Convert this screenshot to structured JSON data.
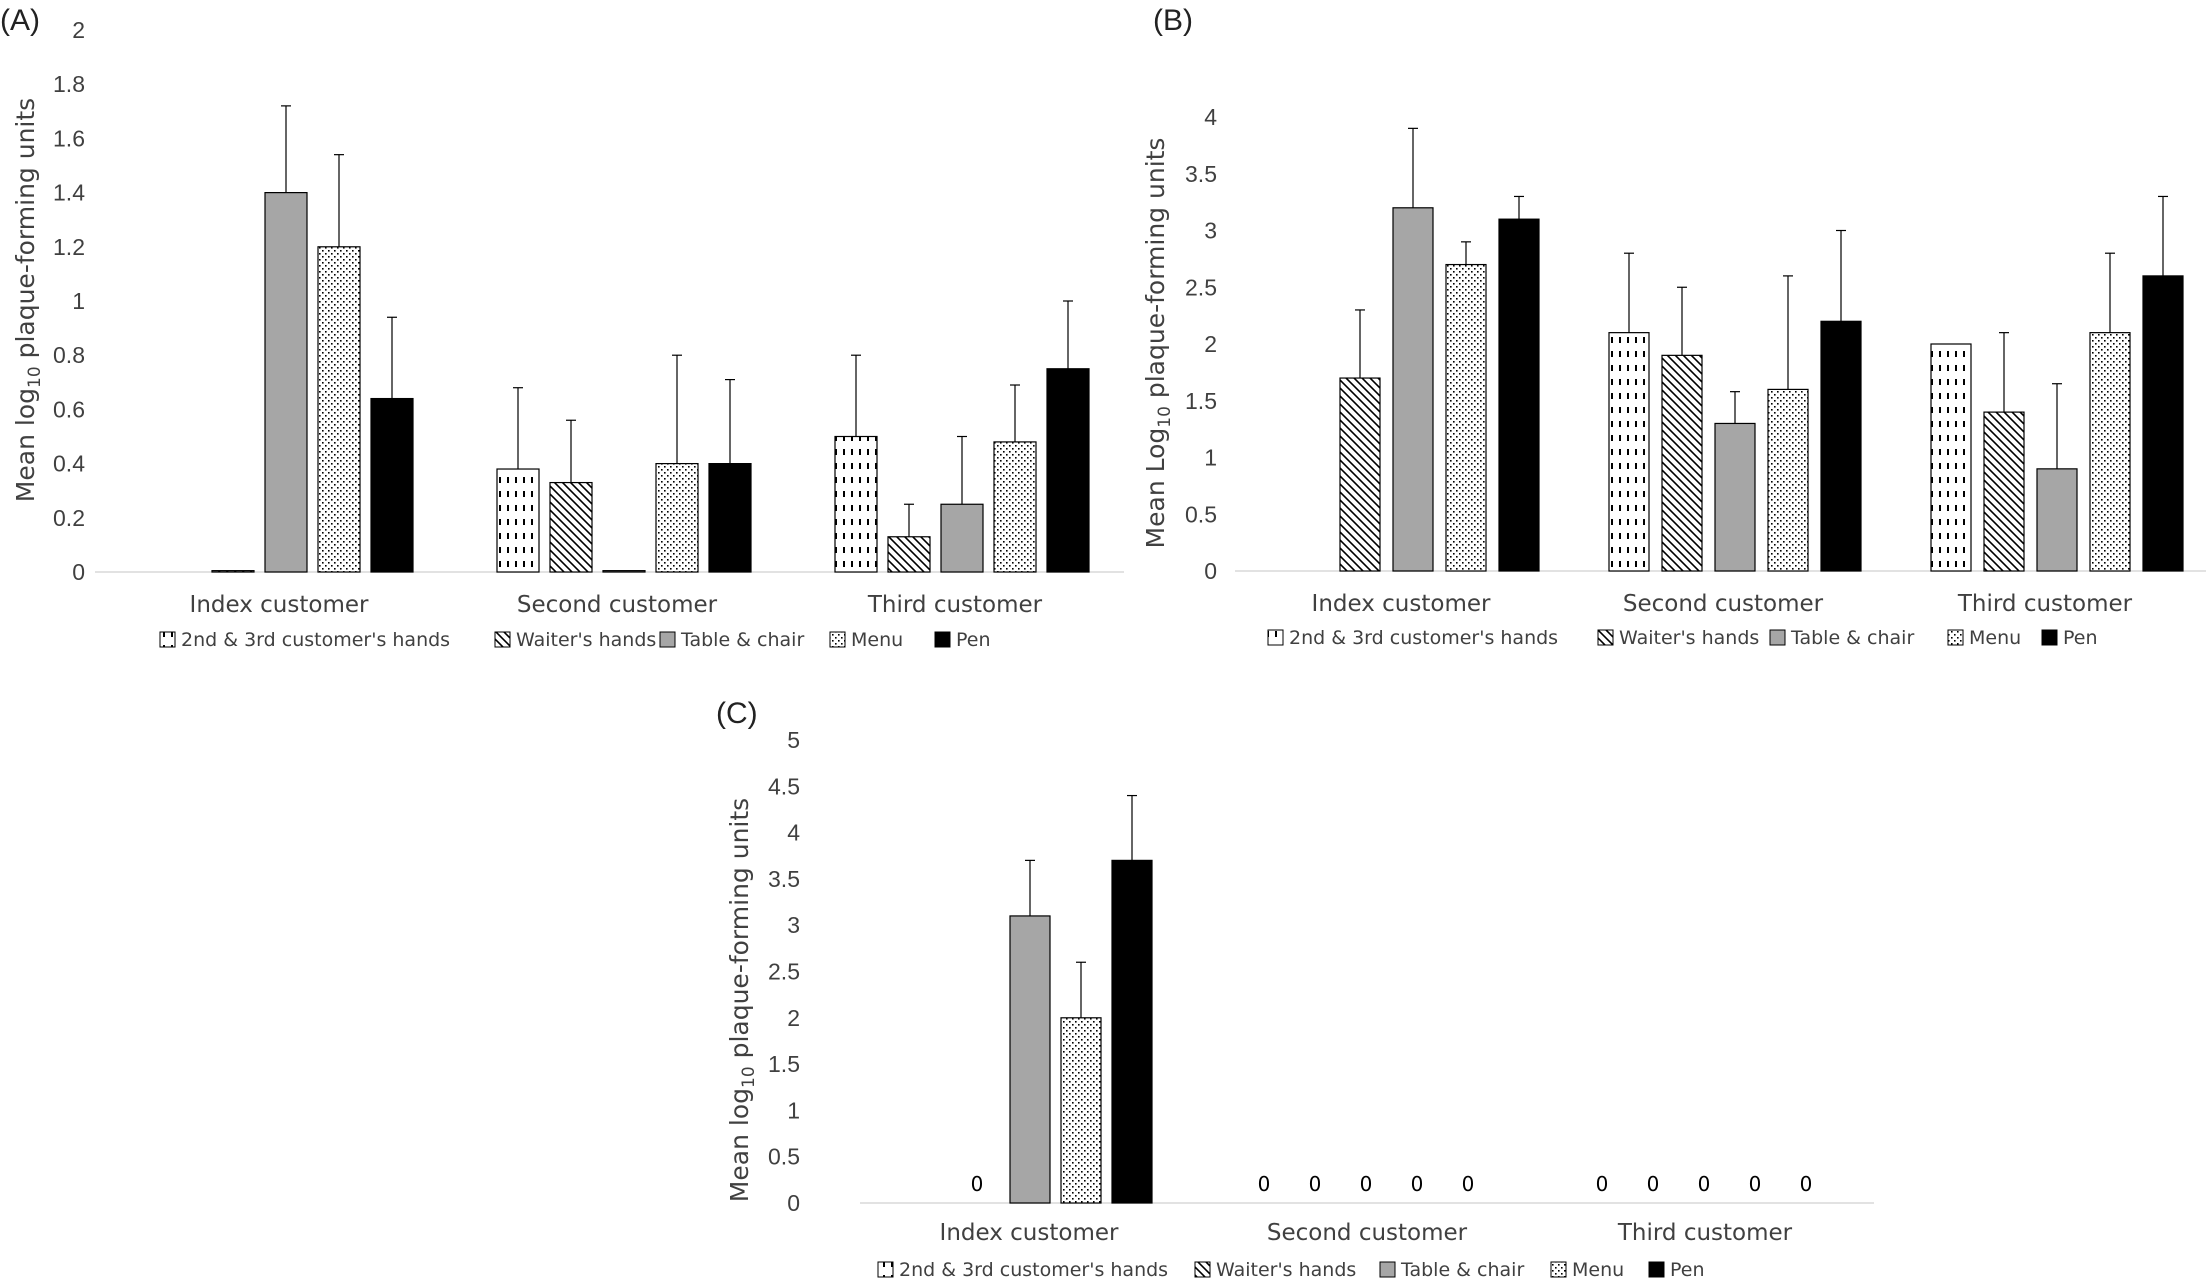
{
  "legend_entries": [
    "2nd & 3rd customer's hands",
    "Waiter's hands",
    "Table & chair",
    "Menu",
    "Pen"
  ],
  "styles": {
    "2nd & 3rd customer's hands": "dashes",
    "Waiter's hands": "diagonal",
    "Table & chair": "#a6a6a6",
    "Menu": "dots",
    "Pen": "#000000"
  },
  "chart_data": [
    {
      "panel": "(A)",
      "type": "bar",
      "title": "",
      "ylabel_main": "Mean log",
      "ylabel_sub": "10",
      "ylabel_rest": " plaque-forming units",
      "ylim": [
        0,
        2
      ],
      "yticks": [
        "0",
        "0.2",
        "0.4",
        "0.6",
        "0.8",
        "1",
        "1.2",
        "1.4",
        "1.6",
        "1.8",
        "2"
      ],
      "categories": [
        "Index customer",
        "Second customer",
        "Third customer"
      ],
      "grid": false,
      "legend": "bottom",
      "series": [
        {
          "name": "2nd & 3rd customer's hands",
          "values": [
            0,
            0.38,
            0.5
          ],
          "errors": [
            0,
            0.3,
            0.3
          ]
        },
        {
          "name": "Waiter's hands",
          "values": [
            0.005,
            0.33,
            0.13
          ],
          "errors": [
            0,
            0.23,
            0.12
          ]
        },
        {
          "name": "Table & chair",
          "values": [
            1.4,
            0.005,
            0.25
          ],
          "errors": [
            0.32,
            0,
            0.25
          ]
        },
        {
          "name": "Menu",
          "values": [
            1.2,
            0.4,
            0.48
          ],
          "errors": [
            0.34,
            0.4,
            0.21
          ]
        },
        {
          "name": "Pen",
          "values": [
            0.64,
            0.4,
            0.75
          ],
          "errors": [
            0.3,
            0.31,
            0.25
          ]
        }
      ],
      "data_labels": []
    },
    {
      "panel": "(B)",
      "type": "bar",
      "title": "",
      "ylabel_main": "Mean Log",
      "ylabel_sub": "10",
      "ylabel_rest": " plaque-forming units",
      "ylim": [
        0,
        4
      ],
      "yticks": [
        "0",
        "0.5",
        "1",
        "1.5",
        "2",
        "2.5",
        "3",
        "3.5",
        "4"
      ],
      "categories": [
        "Index customer",
        "Second customer",
        "Third customer"
      ],
      "grid": false,
      "legend": "bottom",
      "series": [
        {
          "name": "2nd & 3rd customer's hands",
          "values": [
            0,
            2.1,
            2.0
          ],
          "errors": [
            0,
            0.7,
            0
          ]
        },
        {
          "name": "Waiter's hands",
          "values": [
            1.7,
            1.9,
            1.4
          ],
          "errors": [
            0.6,
            0.6,
            0.7
          ]
        },
        {
          "name": "Table & chair",
          "values": [
            3.2,
            1.3,
            0.9
          ],
          "errors": [
            0.7,
            0.28,
            0.75
          ]
        },
        {
          "name": "Menu",
          "values": [
            2.7,
            1.6,
            2.1
          ],
          "errors": [
            0.2,
            1.0,
            0.7
          ]
        },
        {
          "name": "Pen",
          "values": [
            3.1,
            2.2,
            2.6
          ],
          "errors": [
            0.2,
            0.8,
            0.7
          ]
        }
      ],
      "data_labels": []
    },
    {
      "panel": "(C)",
      "type": "bar",
      "title": "",
      "ylabel_main": "Mean log",
      "ylabel_sub": "10",
      "ylabel_rest": " plaque-forming units",
      "ylim": [
        0,
        5
      ],
      "yticks": [
        "0",
        "0.5",
        "1",
        "1.5",
        "2",
        "2.5",
        "3",
        "3.5",
        "4",
        "4.5",
        "5"
      ],
      "categories": [
        "Index customer",
        "Second customer",
        "Third customer"
      ],
      "grid": false,
      "legend": "bottom",
      "series": [
        {
          "name": "2nd & 3rd customer's hands",
          "values": [
            0,
            0,
            0
          ],
          "errors": [
            0,
            0,
            0
          ]
        },
        {
          "name": "Waiter's hands",
          "values": [
            0,
            0,
            0
          ],
          "errors": [
            0,
            0,
            0
          ]
        },
        {
          "name": "Table & chair",
          "values": [
            3.1,
            0,
            0
          ],
          "errors": [
            0.6,
            0,
            0
          ]
        },
        {
          "name": "Menu",
          "values": [
            2.0,
            0,
            0
          ],
          "errors": [
            0.6,
            0,
            0
          ]
        },
        {
          "name": "Pen",
          "values": [
            3.7,
            0,
            0
          ],
          "errors": [
            0.7,
            0,
            0
          ]
        }
      ],
      "data_labels": [
        {
          "category": 0,
          "series": 1,
          "text": "0"
        },
        {
          "category": 1,
          "series": 0,
          "text": "0"
        },
        {
          "category": 1,
          "series": 1,
          "text": "0"
        },
        {
          "category": 1,
          "series": 2,
          "text": "0"
        },
        {
          "category": 1,
          "series": 3,
          "text": "0"
        },
        {
          "category": 1,
          "series": 4,
          "text": "0"
        },
        {
          "category": 2,
          "series": 0,
          "text": "0"
        },
        {
          "category": 2,
          "series": 1,
          "text": "0"
        },
        {
          "category": 2,
          "series": 2,
          "text": "0"
        },
        {
          "category": 2,
          "series": 3,
          "text": "0"
        },
        {
          "category": 2,
          "series": 4,
          "text": "0"
        }
      ]
    }
  ]
}
